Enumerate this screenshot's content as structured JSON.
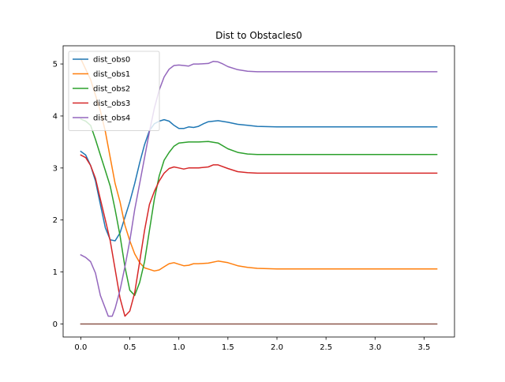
{
  "chart_data": {
    "type": "line",
    "title": "Dist to Obstacles0",
    "xlabel": "",
    "ylabel": "",
    "xlim": [
      -0.18,
      3.81
    ],
    "ylim": [
      -0.25,
      5.35
    ],
    "xticks": [
      "0.0",
      "0.5",
      "1.0",
      "1.5",
      "2.0",
      "2.5",
      "3.0",
      "3.5"
    ],
    "xtick_values": [
      0,
      0.5,
      1.0,
      1.5,
      2.0,
      2.5,
      3.0,
      3.5
    ],
    "yticks": [
      "0",
      "1",
      "2",
      "3",
      "4",
      "5"
    ],
    "ytick_values": [
      0,
      1,
      2,
      3,
      4,
      5
    ],
    "grid": false,
    "legend_position": "top-left",
    "series": [
      {
        "name": "dist_obs0",
        "color": "#1f77b4",
        "points": [
          [
            0.0,
            3.32
          ],
          [
            0.05,
            3.25
          ],
          [
            0.1,
            3.05
          ],
          [
            0.15,
            2.75
          ],
          [
            0.2,
            2.3
          ],
          [
            0.25,
            1.85
          ],
          [
            0.3,
            1.62
          ],
          [
            0.35,
            1.6
          ],
          [
            0.4,
            1.75
          ],
          [
            0.45,
            2.05
          ],
          [
            0.5,
            2.35
          ],
          [
            0.55,
            2.7
          ],
          [
            0.6,
            3.1
          ],
          [
            0.65,
            3.45
          ],
          [
            0.7,
            3.72
          ],
          [
            0.75,
            3.85
          ],
          [
            0.8,
            3.9
          ],
          [
            0.85,
            3.93
          ],
          [
            0.9,
            3.9
          ],
          [
            0.95,
            3.82
          ],
          [
            1.0,
            3.76
          ],
          [
            1.05,
            3.76
          ],
          [
            1.1,
            3.79
          ],
          [
            1.15,
            3.78
          ],
          [
            1.2,
            3.8
          ],
          [
            1.25,
            3.85
          ],
          [
            1.3,
            3.89
          ],
          [
            1.4,
            3.91
          ],
          [
            1.5,
            3.88
          ],
          [
            1.6,
            3.84
          ],
          [
            1.7,
            3.82
          ],
          [
            1.8,
            3.8
          ],
          [
            2.0,
            3.79
          ],
          [
            2.5,
            3.79
          ],
          [
            3.0,
            3.79
          ],
          [
            3.63,
            3.79
          ]
        ]
      },
      {
        "name": "dist_obs1",
        "color": "#ff7f0e",
        "points": [
          [
            0.0,
            5.1
          ],
          [
            0.05,
            4.9
          ],
          [
            0.1,
            4.7
          ],
          [
            0.15,
            4.4
          ],
          [
            0.2,
            4.1
          ],
          [
            0.25,
            3.7
          ],
          [
            0.3,
            3.2
          ],
          [
            0.35,
            2.7
          ],
          [
            0.4,
            2.35
          ],
          [
            0.45,
            1.9
          ],
          [
            0.5,
            1.6
          ],
          [
            0.55,
            1.35
          ],
          [
            0.6,
            1.18
          ],
          [
            0.65,
            1.08
          ],
          [
            0.7,
            1.05
          ],
          [
            0.75,
            1.02
          ],
          [
            0.8,
            1.04
          ],
          [
            0.85,
            1.1
          ],
          [
            0.9,
            1.16
          ],
          [
            0.95,
            1.18
          ],
          [
            1.0,
            1.15
          ],
          [
            1.05,
            1.12
          ],
          [
            1.1,
            1.13
          ],
          [
            1.15,
            1.16
          ],
          [
            1.2,
            1.16
          ],
          [
            1.3,
            1.17
          ],
          [
            1.4,
            1.21
          ],
          [
            1.5,
            1.18
          ],
          [
            1.6,
            1.12
          ],
          [
            1.7,
            1.09
          ],
          [
            1.8,
            1.07
          ],
          [
            2.0,
            1.06
          ],
          [
            2.5,
            1.06
          ],
          [
            3.0,
            1.06
          ],
          [
            3.63,
            1.06
          ]
        ]
      },
      {
        "name": "dist_obs2",
        "color": "#2ca02c",
        "points": [
          [
            0.0,
            3.94
          ],
          [
            0.05,
            3.9
          ],
          [
            0.1,
            3.82
          ],
          [
            0.15,
            3.55
          ],
          [
            0.2,
            3.25
          ],
          [
            0.25,
            2.95
          ],
          [
            0.3,
            2.65
          ],
          [
            0.35,
            2.2
          ],
          [
            0.4,
            1.7
          ],
          [
            0.45,
            1.1
          ],
          [
            0.5,
            0.65
          ],
          [
            0.55,
            0.55
          ],
          [
            0.6,
            0.8
          ],
          [
            0.65,
            1.2
          ],
          [
            0.7,
            1.8
          ],
          [
            0.75,
            2.4
          ],
          [
            0.8,
            2.85
          ],
          [
            0.85,
            3.15
          ],
          [
            0.9,
            3.3
          ],
          [
            0.95,
            3.42
          ],
          [
            1.0,
            3.48
          ],
          [
            1.1,
            3.5
          ],
          [
            1.2,
            3.5
          ],
          [
            1.3,
            3.51
          ],
          [
            1.4,
            3.48
          ],
          [
            1.5,
            3.37
          ],
          [
            1.6,
            3.3
          ],
          [
            1.7,
            3.27
          ],
          [
            1.8,
            3.26
          ],
          [
            2.0,
            3.26
          ],
          [
            2.5,
            3.26
          ],
          [
            3.0,
            3.26
          ],
          [
            3.63,
            3.26
          ]
        ]
      },
      {
        "name": "dist_obs3",
        "color": "#d62728",
        "points": [
          [
            0.0,
            3.25
          ],
          [
            0.05,
            3.2
          ],
          [
            0.1,
            3.05
          ],
          [
            0.15,
            2.8
          ],
          [
            0.2,
            2.4
          ],
          [
            0.25,
            2.0
          ],
          [
            0.3,
            1.6
          ],
          [
            0.35,
            1.05
          ],
          [
            0.4,
            0.5
          ],
          [
            0.45,
            0.15
          ],
          [
            0.5,
            0.25
          ],
          [
            0.55,
            0.6
          ],
          [
            0.6,
            1.2
          ],
          [
            0.65,
            1.8
          ],
          [
            0.7,
            2.3
          ],
          [
            0.75,
            2.55
          ],
          [
            0.8,
            2.75
          ],
          [
            0.85,
            2.9
          ],
          [
            0.9,
            2.99
          ],
          [
            0.95,
            3.02
          ],
          [
            1.0,
            3.0
          ],
          [
            1.05,
            2.98
          ],
          [
            1.1,
            3.0
          ],
          [
            1.2,
            3.0
          ],
          [
            1.3,
            3.02
          ],
          [
            1.35,
            3.06
          ],
          [
            1.4,
            3.06
          ],
          [
            1.5,
            2.99
          ],
          [
            1.6,
            2.93
          ],
          [
            1.7,
            2.91
          ],
          [
            1.8,
            2.9
          ],
          [
            2.0,
            2.9
          ],
          [
            2.5,
            2.9
          ],
          [
            3.0,
            2.9
          ],
          [
            3.63,
            2.9
          ]
        ]
      },
      {
        "name": "dist_obs4",
        "color": "#9467bd",
        "points": [
          [
            0.0,
            1.33
          ],
          [
            0.05,
            1.28
          ],
          [
            0.1,
            1.2
          ],
          [
            0.15,
            0.98
          ],
          [
            0.2,
            0.55
          ],
          [
            0.25,
            0.3
          ],
          [
            0.28,
            0.15
          ],
          [
            0.32,
            0.15
          ],
          [
            0.35,
            0.3
          ],
          [
            0.4,
            0.65
          ],
          [
            0.45,
            1.1
          ],
          [
            0.5,
            1.6
          ],
          [
            0.55,
            2.2
          ],
          [
            0.6,
            2.7
          ],
          [
            0.65,
            3.2
          ],
          [
            0.7,
            3.7
          ],
          [
            0.75,
            4.15
          ],
          [
            0.8,
            4.5
          ],
          [
            0.85,
            4.75
          ],
          [
            0.9,
            4.9
          ],
          [
            0.95,
            4.97
          ],
          [
            1.0,
            4.98
          ],
          [
            1.05,
            4.97
          ],
          [
            1.1,
            4.96
          ],
          [
            1.15,
            5.0
          ],
          [
            1.2,
            5.0
          ],
          [
            1.3,
            5.01
          ],
          [
            1.35,
            5.05
          ],
          [
            1.4,
            5.04
          ],
          [
            1.45,
            5.0
          ],
          [
            1.5,
            4.95
          ],
          [
            1.6,
            4.89
          ],
          [
            1.7,
            4.86
          ],
          [
            1.8,
            4.85
          ],
          [
            2.0,
            4.85
          ],
          [
            2.5,
            4.85
          ],
          [
            3.0,
            4.85
          ],
          [
            3.63,
            4.85
          ]
        ]
      },
      {
        "name": "",
        "color": "#8c564b",
        "points": [
          [
            0.0,
            0.0
          ],
          [
            3.63,
            0.0
          ]
        ]
      }
    ]
  }
}
